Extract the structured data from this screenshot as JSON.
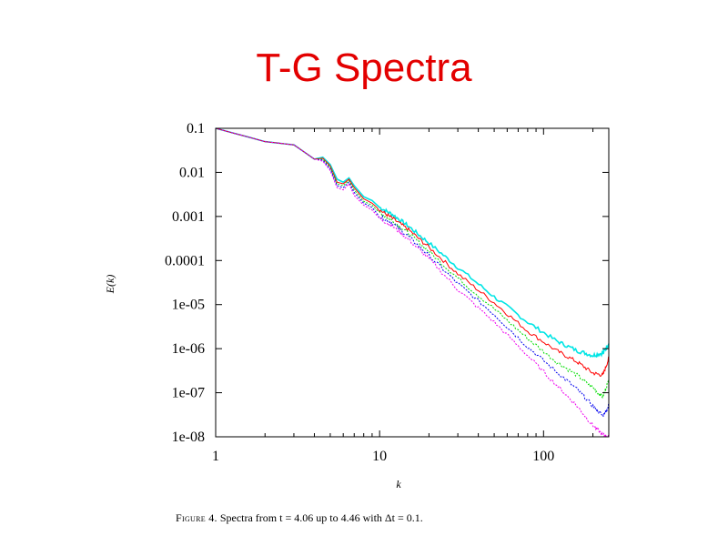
{
  "slide": {
    "title": "T-G Spectra"
  },
  "caption": {
    "label": "Figure 4.",
    "text": "Spectra from t = 4.06 up to 4.46 with Δt = 0.1."
  },
  "colors": {
    "title": "#e30000",
    "axis": "#000000"
  },
  "chart_data": {
    "type": "line",
    "title": "",
    "xlabel": "k",
    "ylabel": "E(k)",
    "xscale": "log",
    "yscale": "log",
    "xlim": [
      1,
      250
    ],
    "ylim": [
      1e-08,
      0.1
    ],
    "grid": false,
    "x_tick_labels": [
      "1",
      "10",
      "100"
    ],
    "x_tick_values": [
      1,
      10,
      100
    ],
    "y_tick_labels": [
      "1e-08",
      "1e-07",
      "1e-06",
      "1e-05",
      "0.0001",
      "0.001",
      "0.01",
      "0.1"
    ],
    "y_tick_values": [
      1e-08,
      1e-07,
      1e-06,
      1e-05,
      0.0001,
      0.001,
      0.01,
      0.1
    ],
    "series": [
      {
        "color": "#00e5e5",
        "x": [
          1,
          2,
          3,
          4,
          4.5,
          5,
          5.5,
          6,
          6.5,
          7,
          8,
          9,
          10,
          12,
          15,
          20,
          30,
          50,
          80,
          120,
          160,
          200,
          230,
          250
        ],
        "y": [
          0.1,
          0.05,
          0.042,
          0.02,
          0.022,
          0.015,
          0.007,
          0.006,
          0.0075,
          0.005,
          0.0028,
          0.0023,
          0.0016,
          0.0011,
          0.0006,
          0.00025,
          7e-05,
          1.5e-05,
          4e-06,
          1.5e-06,
          9e-07,
          7e-07,
          8e-07,
          1.3e-06
        ]
      },
      {
        "color": "#ff0000",
        "x": [
          1,
          2,
          3,
          4,
          4.5,
          5,
          5.5,
          6,
          6.5,
          7,
          8,
          9,
          10,
          12,
          15,
          20,
          30,
          50,
          80,
          120,
          160,
          200,
          230,
          250
        ],
        "y": [
          0.1,
          0.05,
          0.042,
          0.02,
          0.021,
          0.014,
          0.006,
          0.0055,
          0.007,
          0.0045,
          0.0025,
          0.002,
          0.0014,
          0.0009,
          0.0005,
          0.0002,
          5e-05,
          1.1e-05,
          2.5e-06,
          9e-07,
          5e-07,
          2.8e-07,
          2.5e-07,
          6e-07
        ]
      },
      {
        "color": "#00dd00",
        "x": [
          1,
          2,
          3,
          4,
          4.5,
          5,
          5.5,
          6,
          6.5,
          7,
          8,
          9,
          10,
          12,
          15,
          20,
          30,
          50,
          80,
          120,
          160,
          200,
          230,
          250
        ],
        "y": [
          0.1,
          0.05,
          0.042,
          0.02,
          0.02,
          0.013,
          0.0055,
          0.005,
          0.0065,
          0.004,
          0.0022,
          0.0018,
          0.0012,
          0.0008,
          0.00042,
          0.00016,
          4e-05,
          8e-06,
          1.7e-06,
          5e-07,
          2.5e-07,
          1.3e-07,
          8e-08,
          2e-07
        ]
      },
      {
        "color": "#0000ee",
        "x": [
          1,
          2,
          3,
          4,
          4.5,
          5,
          5.5,
          6,
          6.5,
          7,
          8,
          9,
          10,
          12,
          15,
          20,
          30,
          50,
          80,
          120,
          160,
          200,
          230,
          250
        ],
        "y": [
          0.1,
          0.05,
          0.042,
          0.02,
          0.019,
          0.012,
          0.005,
          0.0045,
          0.006,
          0.0035,
          0.002,
          0.0016,
          0.001,
          0.0007,
          0.00035,
          0.00013,
          3e-05,
          6e-06,
          1.1e-06,
          3e-07,
          1.2e-07,
          5e-08,
          3e-08,
          5e-08
        ]
      },
      {
        "color": "#ee00ee",
        "x": [
          1,
          2,
          3,
          4,
          4.5,
          5,
          5.5,
          6,
          6.5,
          7,
          8,
          9,
          10,
          12,
          15,
          20,
          30,
          50,
          80,
          120,
          160,
          200,
          230,
          250
        ],
        "y": [
          0.1,
          0.05,
          0.042,
          0.02,
          0.018,
          0.011,
          0.0045,
          0.004,
          0.0055,
          0.003,
          0.0018,
          0.0014,
          0.0009,
          0.0006,
          0.0003,
          0.00011,
          2.2e-05,
          4e-06,
          7e-07,
          1.5e-07,
          5e-08,
          1.8e-08,
          1.1e-08,
          1e-08
        ]
      }
    ]
  }
}
